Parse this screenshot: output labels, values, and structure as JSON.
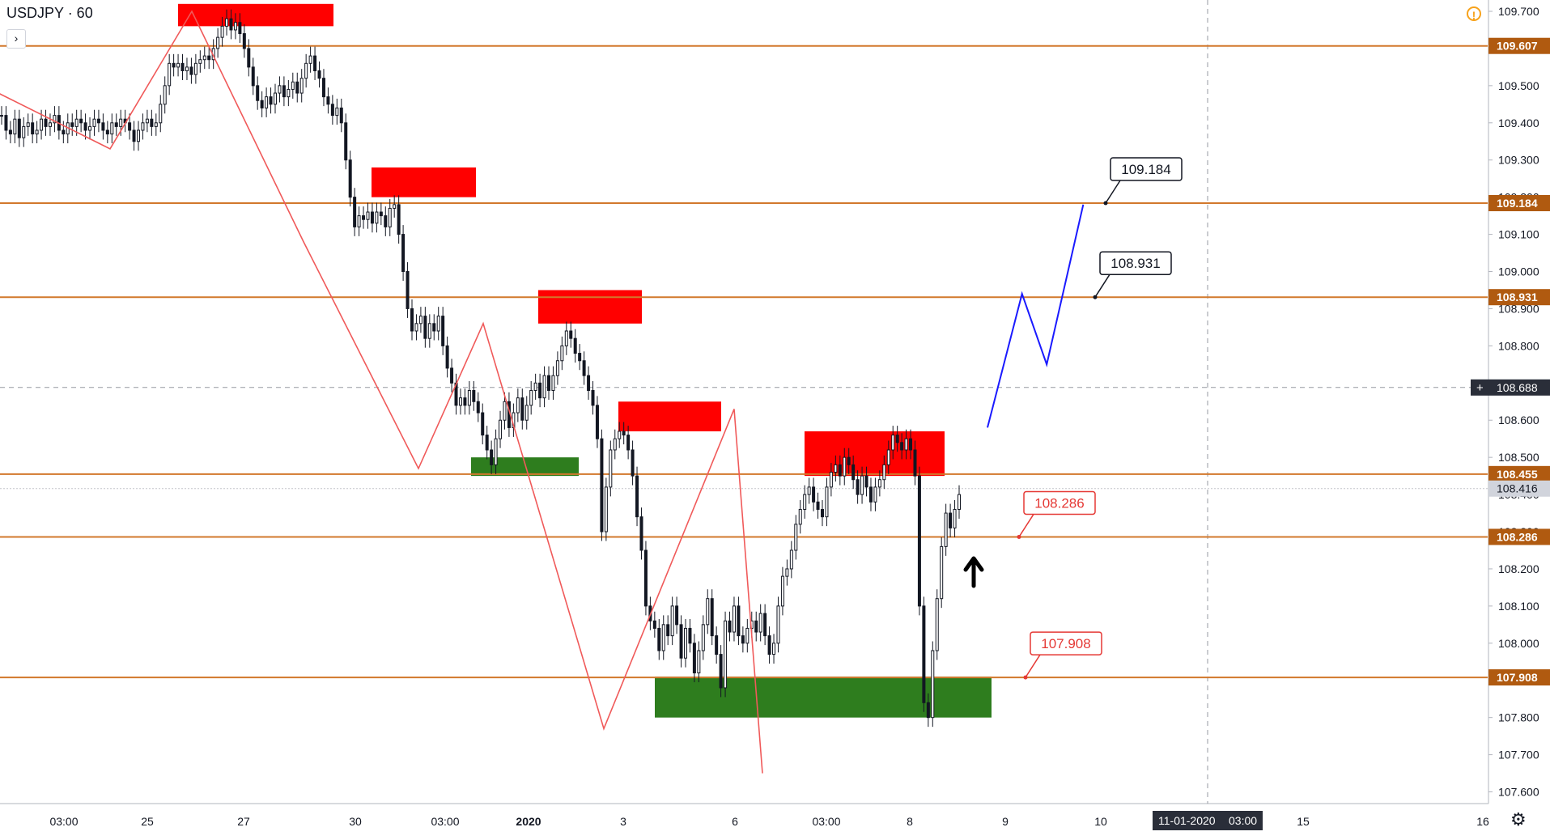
{
  "header": {
    "symbol": "USDJPY · 60",
    "collapse_glyph": "›"
  },
  "icons": {
    "warning": "exclamation-circle-icon",
    "settings": "gear-icon"
  },
  "colors": {
    "level": "#d2782c",
    "supply": "#ff0000",
    "demand": "#2e7d1e",
    "zigzag": "#f05a5a",
    "projection": "#1a1aff",
    "candle": "#131722",
    "price_label_bg": "#b05a10",
    "current_label_bg": "#2a2e39",
    "last_label_bg": "#d1d4dc",
    "callout_red": "#e53935"
  },
  "chart_data": {
    "type": "line",
    "title": "USDJPY · 60",
    "xlabel": "",
    "ylabel": "",
    "ylim": [
      107.55,
      109.73
    ],
    "grid": false,
    "y_ticks": [
      "109.700",
      "109.600",
      "109.500",
      "109.400",
      "109.300",
      "109.200",
      "109.100",
      "109.000",
      "108.900",
      "108.800",
      "108.700",
      "108.600",
      "108.500",
      "108.400",
      "108.300",
      "108.200",
      "108.100",
      "108.000",
      "107.900",
      "107.800",
      "107.700",
      "107.600"
    ],
    "x_ticks": [
      "03:00",
      "25",
      "27",
      "30",
      "03:00",
      "2020",
      "3",
      "6",
      "03:00",
      "8",
      "9",
      "10",
      "03:00",
      "15",
      "16"
    ],
    "x_bold_tick": "2020",
    "crosshair_time_label": "11-01-2020",
    "crosshair_time_tick": "03:00",
    "horizontal_levels": [
      109.607,
      109.184,
      108.931,
      108.455,
      108.286,
      107.908
    ],
    "level_labels": [
      "109.607",
      "109.184",
      "108.931",
      "108.455",
      "108.286",
      "107.908"
    ],
    "current_price": "108.688",
    "last_price": "108.416",
    "callouts": [
      {
        "text": "109.184",
        "style": "dark"
      },
      {
        "text": "108.931",
        "style": "dark"
      },
      {
        "text": "108.286",
        "style": "red"
      },
      {
        "text": "107.908",
        "style": "red"
      }
    ],
    "supply_zones": [
      [
        109.72,
        109.66
      ],
      [
        109.28,
        109.2
      ],
      [
        108.95,
        108.86
      ],
      [
        108.65,
        108.57
      ],
      [
        108.57,
        108.45
      ]
    ],
    "demand_zones": [
      [
        108.5,
        108.45
      ],
      [
        107.91,
        107.8
      ]
    ],
    "zigzag": [
      [
        -2,
        109.48
      ],
      [
        136,
        109.33
      ],
      [
        237,
        109.7
      ],
      [
        375,
        109.08
      ],
      [
        517,
        108.47
      ],
      [
        597,
        108.86
      ],
      [
        746,
        107.77
      ],
      [
        907,
        108.63
      ],
      [
        942,
        107.65
      ]
    ],
    "projection": [
      [
        1000,
        108.58
      ],
      [
        1035,
        108.94
      ],
      [
        1060,
        108.75
      ],
      [
        1097,
        109.18
      ]
    ],
    "candles_close": [
      109.42,
      109.38,
      109.37,
      109.41,
      109.36,
      109.39,
      109.4,
      109.37,
      109.38,
      109.41,
      109.39,
      109.4,
      109.42,
      109.38,
      109.37,
      109.4,
      109.39,
      109.41,
      109.4,
      109.38,
      109.39,
      109.41,
      109.4,
      109.38,
      109.37,
      109.4,
      109.39,
      109.41,
      109.4,
      109.38,
      109.35,
      109.38,
      109.4,
      109.41,
      109.39,
      109.4,
      109.45,
      109.5,
      109.56,
      109.55,
      109.56,
      109.54,
      109.55,
      109.53,
      109.56,
      109.57,
      109.58,
      109.57,
      109.6,
      109.63,
      109.66,
      109.68,
      109.65,
      109.67,
      109.64,
      109.6,
      109.55,
      109.5,
      109.46,
      109.44,
      109.47,
      109.45,
      109.48,
      109.5,
      109.47,
      109.49,
      109.51,
      109.48,
      109.52,
      109.56,
      109.58,
      109.54,
      109.52,
      109.47,
      109.45,
      109.42,
      109.44,
      109.4,
      109.3,
      109.2,
      109.12,
      109.15,
      109.14,
      109.16,
      109.13,
      109.16,
      109.15,
      109.12,
      109.17,
      109.18,
      109.1,
      109.0,
      108.9,
      108.84,
      108.86,
      108.88,
      108.82,
      108.86,
      108.84,
      108.88,
      108.8,
      108.74,
      108.7,
      108.64,
      108.66,
      108.64,
      108.68,
      108.65,
      108.62,
      108.56,
      108.52,
      108.48,
      108.55,
      108.6,
      108.65,
      108.58,
      108.62,
      108.66,
      108.6,
      108.64,
      108.68,
      108.7,
      108.66,
      108.72,
      108.68,
      108.72,
      108.76,
      108.8,
      108.84,
      108.82,
      108.78,
      108.76,
      108.72,
      108.68,
      108.64,
      108.55,
      108.3,
      108.42,
      108.52,
      108.55,
      108.57,
      108.56,
      108.52,
      108.45,
      108.34,
      108.25,
      108.1,
      108.06,
      108.04,
      107.98,
      108.05,
      108.02,
      108.1,
      108.05,
      107.96,
      108.04,
      108.0,
      107.92,
      107.98,
      108.05,
      108.12,
      108.02,
      107.97,
      107.88,
      108.06,
      108.03,
      108.1,
      108.02,
      108.0,
      108.04,
      108.06,
      108.03,
      108.08,
      108.02,
      107.97,
      108.0,
      108.1,
      108.18,
      108.2,
      108.25,
      108.32,
      108.36,
      108.4,
      108.42,
      108.38,
      108.36,
      108.34,
      108.42,
      108.46,
      108.48,
      108.45,
      108.5,
      108.48,
      108.44,
      108.4,
      108.45,
      108.42,
      108.38,
      108.42,
      108.44,
      108.48,
      108.52,
      108.56,
      108.54,
      108.52,
      108.55,
      108.52,
      108.45,
      108.1,
      107.84,
      107.8,
      107.98,
      108.12,
      108.26,
      108.35,
      108.31,
      108.36,
      108.4
    ],
    "candles_note": ""
  }
}
